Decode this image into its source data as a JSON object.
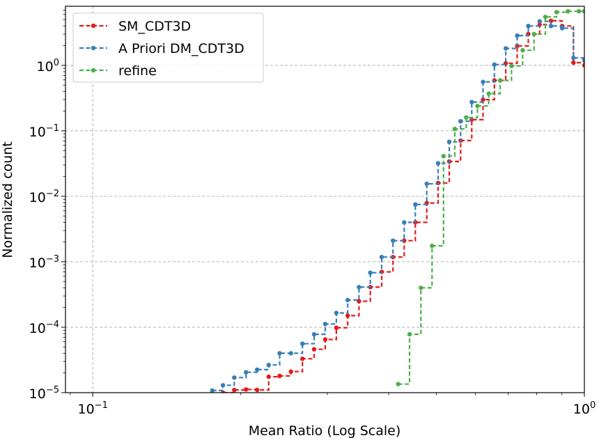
{
  "chart_data": {
    "type": "line",
    "style": "step",
    "xlabel": "Mean Ratio (Log Scale)",
    "ylabel": "Normalized count",
    "xscale": "log",
    "yscale": "log",
    "xlim": [
      0.088,
      1.0
    ],
    "ylim": [
      1e-05,
      8
    ],
    "grid": true,
    "legend_position": "top-left",
    "x_ticks": [
      {
        "value": 0.1,
        "base": "10",
        "exp": "−1"
      },
      {
        "value": 1.0,
        "base": "10",
        "exp": "0"
      }
    ],
    "y_ticks": [
      {
        "value": 1e-05,
        "base": "10",
        "exp": "−5"
      },
      {
        "value": 0.0001,
        "base": "10",
        "exp": "−4"
      },
      {
        "value": 0.001,
        "base": "10",
        "exp": "−3"
      },
      {
        "value": 0.01,
        "base": "10",
        "exp": "−2"
      },
      {
        "value": 0.1,
        "base": "10",
        "exp": "−1"
      },
      {
        "value": 1.0,
        "base": "10",
        "exp": "0"
      }
    ],
    "series": [
      {
        "name": "SM_CDT3D",
        "color": "#e41a1c",
        "x": [
          0.175,
          0.184,
          0.194,
          0.205,
          0.216,
          0.228,
          0.24,
          0.253,
          0.267,
          0.282,
          0.297,
          0.313,
          0.33,
          0.348,
          0.367,
          0.387,
          0.408,
          0.43,
          0.453,
          0.478,
          0.504,
          0.531,
          0.56,
          0.59,
          0.622,
          0.656,
          0.692,
          0.73,
          0.769,
          0.811,
          0.855,
          0.901,
          0.95,
          1.0
        ],
        "y": [
          9.5e-06,
          1e-05,
          1.1e-05,
          1.12e-05,
          1.1e-05,
          1.75e-05,
          1.8e-05,
          2.1e-05,
          3.3e-05,
          4.6e-05,
          6.5e-05,
          9.8e-05,
          0.00015,
          0.00025,
          0.00041,
          0.0007,
          0.00118,
          0.0021,
          0.004,
          0.0079,
          0.016,
          0.034,
          0.071,
          0.148,
          0.3,
          0.59,
          1.08,
          1.98,
          3.0,
          4.2,
          4.8,
          4.0,
          1.1,
          1.0
        ]
      },
      {
        "name": "A Priori DM_CDT3D",
        "color": "#377eb8",
        "x": [
          0.175,
          0.184,
          0.194,
          0.205,
          0.216,
          0.228,
          0.24,
          0.253,
          0.267,
          0.282,
          0.297,
          0.313,
          0.33,
          0.348,
          0.367,
          0.387,
          0.408,
          0.43,
          0.453,
          0.478,
          0.504,
          0.531,
          0.56,
          0.59,
          0.622,
          0.656,
          0.692,
          0.73,
          0.769,
          0.811,
          0.855,
          0.901,
          0.95,
          1.0
        ],
        "y": [
          1.08e-05,
          1.3e-05,
          1.7e-05,
          2.05e-05,
          2.25e-05,
          2.65e-05,
          4e-05,
          4e-05,
          5.6e-05,
          7.8e-05,
          0.000112,
          0.000165,
          0.00026,
          0.00041,
          0.00068,
          0.00118,
          0.0021,
          0.004,
          0.0075,
          0.0155,
          0.032,
          0.068,
          0.14,
          0.275,
          0.56,
          1.03,
          1.82,
          2.85,
          4.0,
          4.7,
          4.0,
          3.7,
          1.3,
          1.2
        ]
      },
      {
        "name": "refine",
        "color": "#4daf4a",
        "x": [
          0.418,
          0.441,
          0.465,
          0.49,
          0.517,
          0.545,
          0.575,
          0.606,
          0.639,
          0.674,
          0.711,
          0.749,
          0.79,
          0.833,
          0.878,
          0.926,
          0.975,
          1.0
        ],
        "y": [
          1.35e-05,
          7.8e-05,
          0.0004,
          0.00175,
          0.041,
          0.107,
          0.16,
          0.24,
          0.37,
          0.59,
          0.98,
          1.7,
          3.0,
          5.5,
          6.5,
          6.7,
          6.7,
          6.7
        ]
      }
    ]
  }
}
